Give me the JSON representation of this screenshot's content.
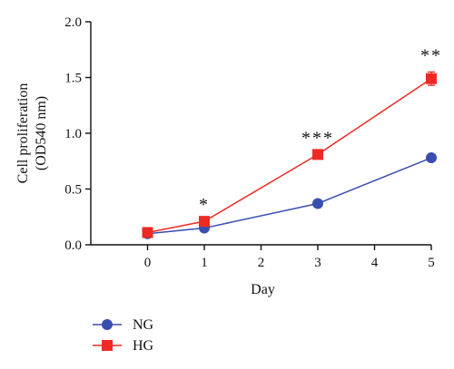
{
  "chart_data": {
    "type": "line",
    "xlabel": "Day",
    "ylabel_line1": "Cell proliferation",
    "ylabel_line2": "(OD540 nm)",
    "xlim": [
      -1,
      5
    ],
    "ylim": [
      0,
      2.0
    ],
    "x_ticks": [
      0,
      1,
      2,
      3,
      4,
      5
    ],
    "x_tick_labels": [
      "0",
      "1",
      "2",
      "3",
      "4",
      "5"
    ],
    "y_ticks": [
      0,
      0.5,
      1.0,
      1.5,
      2.0
    ],
    "y_tick_labels": [
      "0.0",
      "0.5",
      "1.0",
      "1.5",
      "2.0"
    ],
    "grid": false,
    "legend_placement": "bottom-left",
    "series": [
      {
        "name": "NG",
        "color": "#3a4eb0",
        "marker": "circle",
        "x": [
          0,
          1,
          3,
          5
        ],
        "y": [
          0.1,
          0.15,
          0.37,
          0.78
        ]
      },
      {
        "name": "HG",
        "color": "#ee2a24",
        "marker": "square",
        "x": [
          0,
          1,
          3,
          5
        ],
        "y": [
          0.11,
          0.21,
          0.81,
          1.49
        ],
        "error": [
          0.02,
          0.02,
          0.03,
          0.06
        ]
      }
    ],
    "annotations": [
      {
        "x": 1,
        "y": 0.21,
        "text": "*"
      },
      {
        "x": 3,
        "y": 0.81,
        "text": "***"
      },
      {
        "x": 5,
        "y": 1.55,
        "text": "**"
      }
    ]
  }
}
